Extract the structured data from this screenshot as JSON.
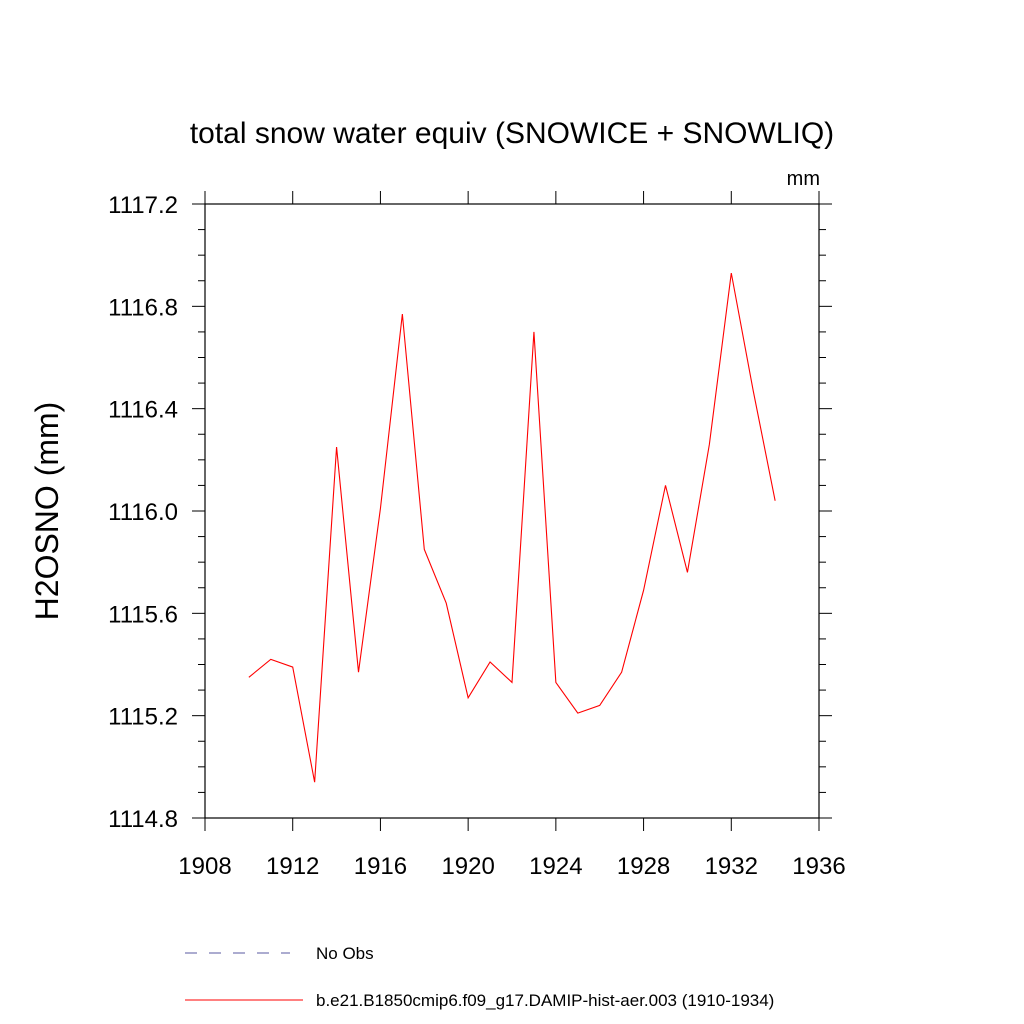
{
  "chart_data": {
    "type": "line",
    "title": "total snow water equiv (SNOWICE + SNOWLIQ)",
    "units": "mm",
    "ylabel": "H2OSNO  (mm)",
    "xlabel": "",
    "xlim": [
      1908,
      1936
    ],
    "ylim": [
      1114.8,
      1117.2
    ],
    "x_ticks": [
      1908,
      1912,
      1916,
      1920,
      1924,
      1928,
      1932,
      1936
    ],
    "y_ticks": [
      1114.8,
      1115.2,
      1115.6,
      1116.0,
      1116.4,
      1116.8,
      1117.2
    ],
    "y_tick_labels": [
      "1114.8",
      "1115.2",
      "1115.6",
      "1116.0",
      "1116.4",
      "1116.8",
      "1117.2"
    ],
    "grid": false,
    "legend_position": "bottom",
    "series": [
      {
        "name": "b.e21.B1850cmip6.f09_g17.DAMIP-hist-aer.003 (1910-1934)",
        "color": "#ff0000",
        "style": "solid",
        "x": [
          1910,
          1911,
          1912,
          1913,
          1914,
          1915,
          1916,
          1917,
          1918,
          1919,
          1920,
          1921,
          1922,
          1923,
          1924,
          1925,
          1926,
          1927,
          1928,
          1929,
          1930,
          1931,
          1932,
          1933,
          1934
        ],
        "y": [
          1115.35,
          1115.42,
          1115.39,
          1114.94,
          1116.25,
          1115.37,
          1116.01,
          1116.77,
          1115.85,
          1115.64,
          1115.27,
          1115.41,
          1115.33,
          1116.7,
          1115.33,
          1115.21,
          1115.24,
          1115.37,
          1115.69,
          1116.1,
          1115.76,
          1116.26,
          1116.93,
          1116.47,
          1116.04
        ]
      }
    ],
    "legend": [
      {
        "label": "No Obs",
        "color": "#5a5aa0",
        "style": "dashed"
      },
      {
        "label": "b.e21.B1850cmip6.f09_g17.DAMIP-hist-aer.003 (1910-1934)",
        "color": "#ff0000",
        "style": "solid"
      }
    ]
  }
}
